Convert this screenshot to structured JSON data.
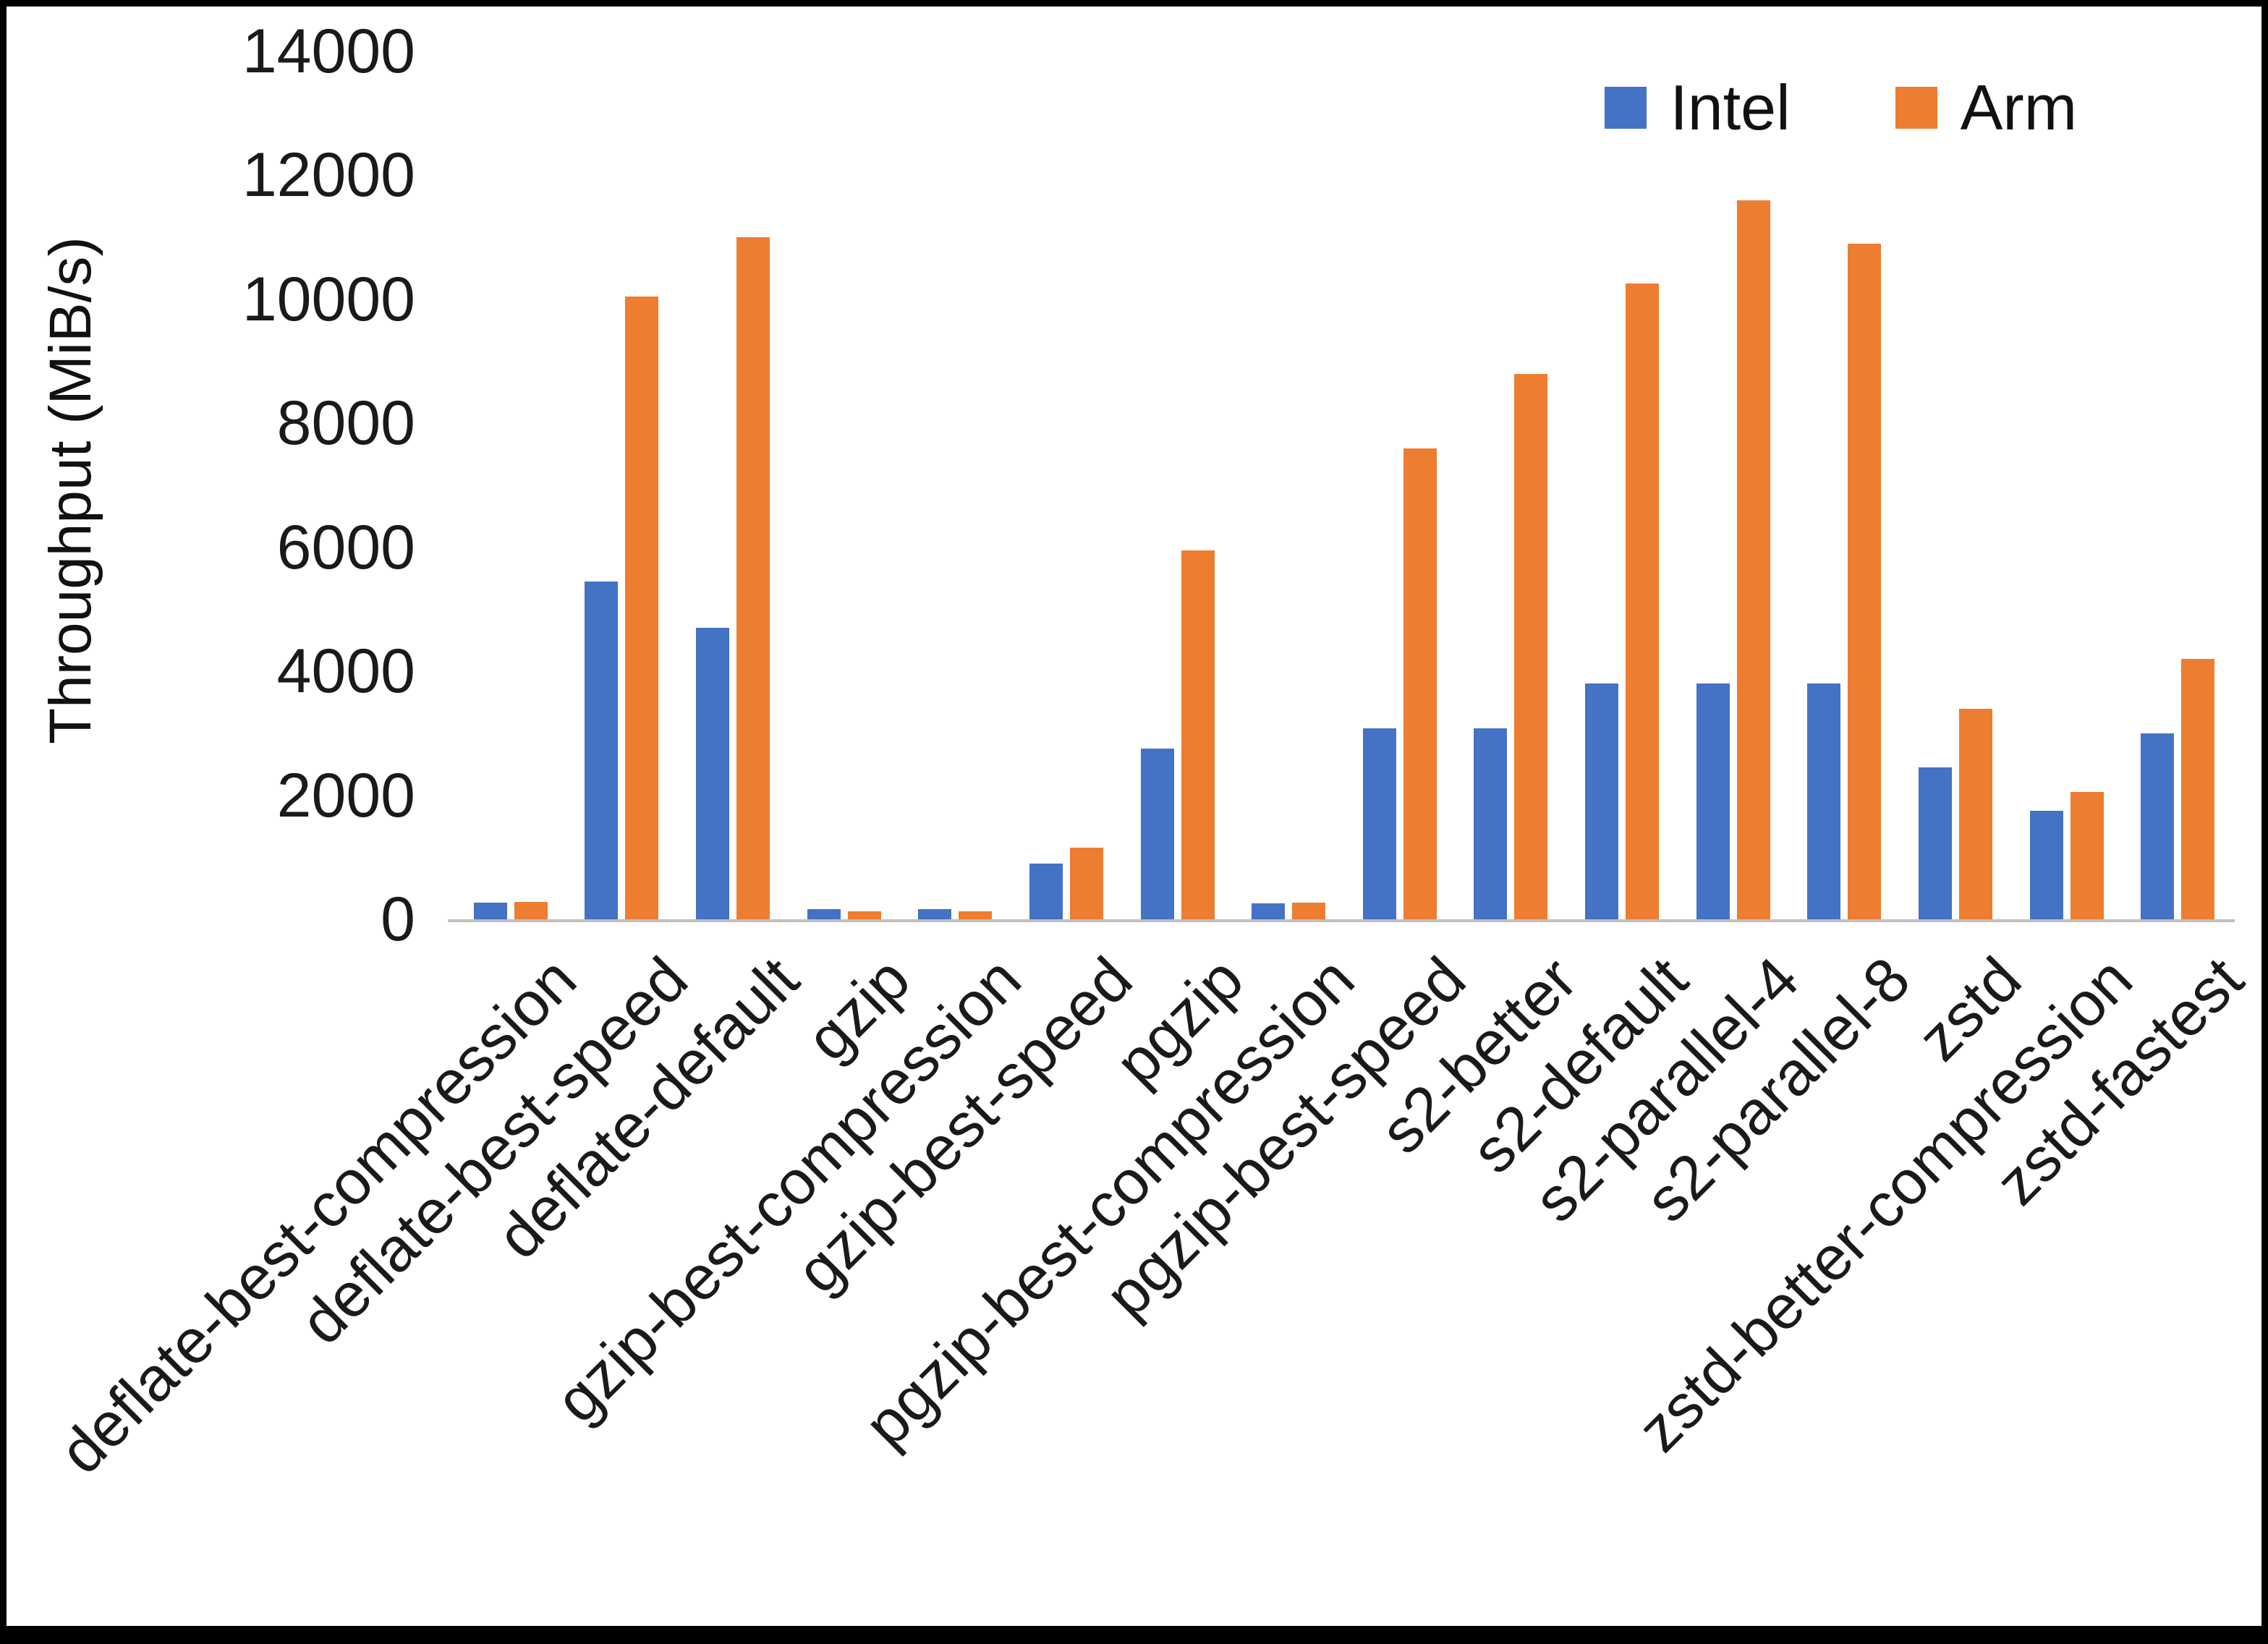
{
  "chart_data": {
    "type": "bar",
    "title": "",
    "xlabel": "",
    "ylabel": "Throughput (MiB/s)",
    "ylim": [
      0,
      14000
    ],
    "ytick_step": 2000,
    "yticks": [
      "0",
      "2000",
      "4000",
      "6000",
      "8000",
      "10000",
      "12000",
      "14000"
    ],
    "grid": false,
    "legend_position": "top-right",
    "categories": [
      "deflate-best-compression",
      "deflate-best-speed",
      "deflate-default",
      "gzip",
      "gzip-best-compression",
      "gzip-best-speed",
      "pgzip",
      "pgzip-best-compression",
      "pgzip-best-speed",
      "s2-better",
      "s2-default",
      "s2-parallel-4",
      "s2-parallel-8",
      "zstd",
      "zstd-better-compression",
      "zstd-fastest"
    ],
    "series": [
      {
        "name": "Intel",
        "color": "#4472C4",
        "values": [
          270,
          5450,
          4700,
          160,
          160,
          900,
          2750,
          260,
          3080,
          3080,
          3800,
          3800,
          3800,
          2450,
          1750,
          3000
        ]
      },
      {
        "name": "Arm",
        "color": "#ED7D31",
        "values": [
          280,
          10050,
          11000,
          130,
          130,
          1150,
          5950,
          270,
          7600,
          8800,
          10250,
          11600,
          10900,
          3400,
          2050,
          4200
        ]
      }
    ]
  },
  "colors": {
    "background": "#FFFFFF",
    "frame_border": "#000000",
    "axis_line": "#BFBFBF",
    "text": "#1A1A1A"
  }
}
